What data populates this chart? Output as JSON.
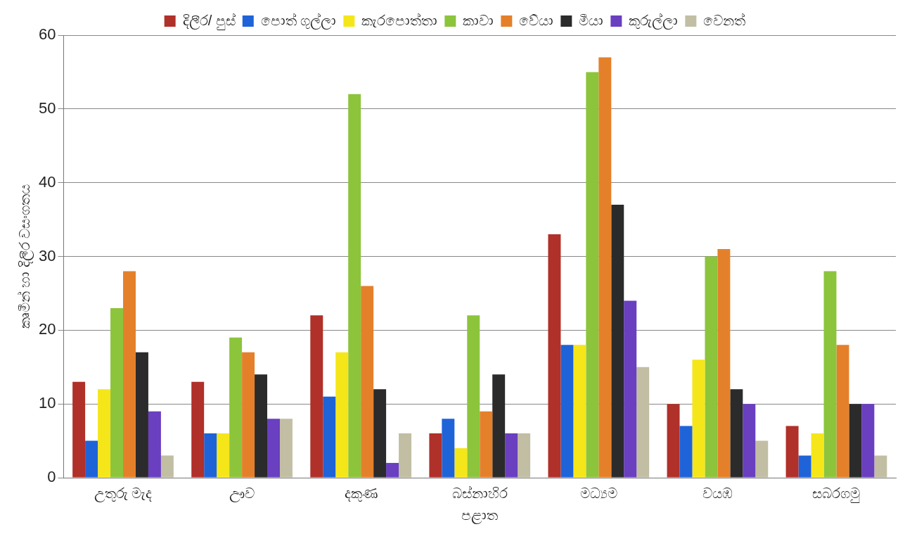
{
  "chart_data": {
    "type": "bar",
    "xlabel": "පළාත",
    "ylabel": "කෘමීන් හා දිලීර වසංගතය",
    "categories": [
      "උතුරු මැද",
      "ඌව",
      "දකුණ",
      "බස්නාහිර",
      "මධ්‍යම",
      "වයඹ",
      "සබරගමු"
    ],
    "series": [
      {
        "name": "දිලීර/ පුස්",
        "color": "#b0302a",
        "values": [
          13,
          13,
          22,
          6,
          33,
          10,
          7
        ]
      },
      {
        "name": "පොත් ගුල්ලා",
        "color": "#1f63d8",
        "values": [
          5,
          6,
          11,
          8,
          18,
          7,
          3
        ]
      },
      {
        "name": "කැරපොත්තා",
        "color": "#f5e61a",
        "values": [
          12,
          6,
          17,
          4,
          18,
          16,
          6
        ]
      },
      {
        "name": "කාවා",
        "color": "#8cc43c",
        "values": [
          23,
          19,
          52,
          22,
          55,
          30,
          28
        ]
      },
      {
        "name": "වේයා",
        "color": "#e5802a",
        "values": [
          28,
          17,
          26,
          9,
          57,
          31,
          18
        ]
      },
      {
        "name": "මීයා",
        "color": "#2b2b2b",
        "values": [
          17,
          14,
          12,
          14,
          37,
          12,
          10
        ]
      },
      {
        "name": "කුරුල්ලා",
        "color": "#6a3fc0",
        "values": [
          9,
          8,
          2,
          6,
          24,
          10,
          10
        ]
      },
      {
        "name": "වෙනත්",
        "color": "#c2bea4",
        "values": [
          3,
          8,
          6,
          6,
          15,
          5,
          3
        ]
      }
    ],
    "ylim": [
      0,
      60
    ],
    "yticks": [
      0,
      10,
      20,
      30,
      40,
      50,
      60
    ],
    "grid": "y",
    "legend": "top"
  }
}
